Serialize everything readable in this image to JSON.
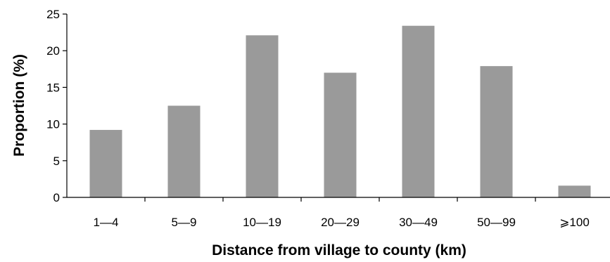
{
  "chart_data": {
    "type": "bar",
    "title": "",
    "xlabel": "Distance from village to county (km)",
    "ylabel": "Proportion (%)",
    "categories": [
      "1—4",
      "5—9",
      "10—19",
      "20—29",
      "30—49",
      "50—99",
      "⩾100"
    ],
    "values": [
      9.2,
      12.5,
      22.1,
      17.0,
      23.4,
      17.9,
      1.6
    ],
    "ylim": [
      0,
      25
    ],
    "yticks": [
      "0",
      "5",
      "10",
      "15",
      "20",
      "25"
    ],
    "grid": false,
    "legend": "none",
    "bar_color": "#9a9a9a"
  }
}
